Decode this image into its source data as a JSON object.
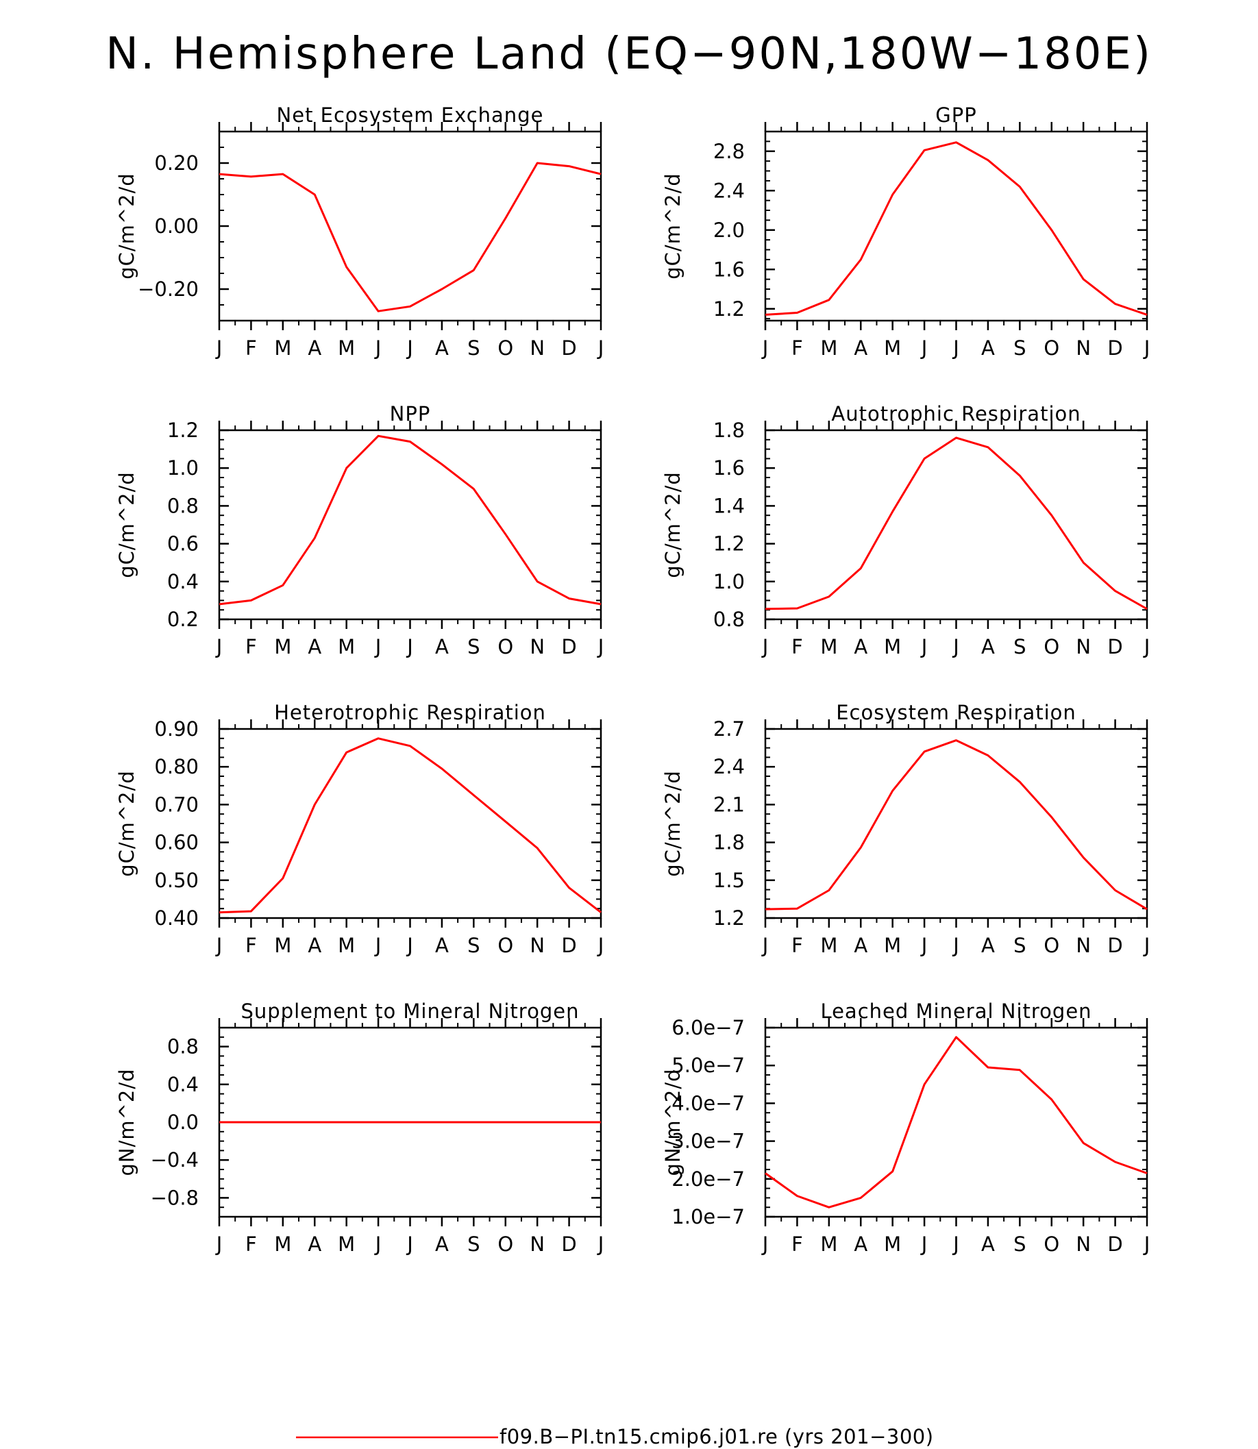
{
  "page": {
    "title": "N. Hemisphere Land (EQ-90N,180W-180E)"
  },
  "colors": {
    "series": "#ff0000",
    "axis": "#000000",
    "background": "#ffffff"
  },
  "legend": {
    "label": "f09.B-PI.tn15.cmip6.j01.re (yrs 201-300)",
    "placement": "bottom-center"
  },
  "chart_data": [
    {
      "type": "line",
      "title": "Net Ecosystem Exchange",
      "ylabel": "gC/m^2/d",
      "x": [
        "J",
        "F",
        "M",
        "A",
        "M",
        "J",
        "J",
        "A",
        "S",
        "O",
        "N",
        "D",
        "J"
      ],
      "ylim": [
        -0.3,
        0.3
      ],
      "yticks": [
        -0.2,
        0.0,
        0.2
      ],
      "ytick_labels": [
        "-0.20",
        "0.00",
        "0.20"
      ],
      "series": [
        {
          "values": [
            0.165,
            0.157,
            0.165,
            0.1,
            -0.13,
            -0.27,
            -0.255,
            -0.2,
            -0.14,
            0.025,
            0.2,
            0.19,
            0.165
          ]
        }
      ]
    },
    {
      "type": "line",
      "title": "GPP",
      "ylabel": "gC/m^2/d",
      "x": [
        "J",
        "F",
        "M",
        "A",
        "M",
        "J",
        "J",
        "A",
        "S",
        "O",
        "N",
        "D",
        "J"
      ],
      "ylim": [
        1.08,
        3.0
      ],
      "yticks": [
        1.2,
        1.6,
        2.0,
        2.4,
        2.8
      ],
      "ytick_labels": [
        "1.2",
        "1.6",
        "2.0",
        "2.4",
        "2.8"
      ],
      "series": [
        {
          "values": [
            1.14,
            1.16,
            1.29,
            1.7,
            2.36,
            2.81,
            2.89,
            2.71,
            2.44,
            2.0,
            1.5,
            1.25,
            1.14
          ]
        }
      ]
    },
    {
      "type": "line",
      "title": "NPP",
      "ylabel": "gC/m^2/d",
      "x": [
        "J",
        "F",
        "M",
        "A",
        "M",
        "J",
        "J",
        "A",
        "S",
        "O",
        "N",
        "D",
        "J"
      ],
      "ylim": [
        0.2,
        1.2
      ],
      "yticks": [
        0.2,
        0.4,
        0.6,
        0.8,
        1.0,
        1.2
      ],
      "ytick_labels": [
        "0.2",
        "0.4",
        "0.6",
        "0.8",
        "1.0",
        "1.2"
      ],
      "series": [
        {
          "values": [
            0.28,
            0.3,
            0.38,
            0.63,
            1.0,
            1.17,
            1.14,
            1.02,
            0.89,
            0.65,
            0.4,
            0.31,
            0.28
          ]
        }
      ]
    },
    {
      "type": "line",
      "title": "Autotrophic Respiration",
      "ylabel": "gC/m^2/d",
      "x": [
        "J",
        "F",
        "M",
        "A",
        "M",
        "J",
        "J",
        "A",
        "S",
        "O",
        "N",
        "D",
        "J"
      ],
      "ylim": [
        0.8,
        1.8
      ],
      "yticks": [
        0.8,
        1.0,
        1.2,
        1.4,
        1.6,
        1.8
      ],
      "ytick_labels": [
        "0.8",
        "1.0",
        "1.2",
        "1.4",
        "1.6",
        "1.8"
      ],
      "series": [
        {
          "values": [
            0.855,
            0.858,
            0.92,
            1.07,
            1.37,
            1.65,
            1.76,
            1.71,
            1.56,
            1.35,
            1.1,
            0.95,
            0.855
          ]
        }
      ]
    },
    {
      "type": "line",
      "title": "Heterotrophic Respiration",
      "ylabel": "gC/m^2/d",
      "x": [
        "J",
        "F",
        "M",
        "A",
        "M",
        "J",
        "J",
        "A",
        "S",
        "O",
        "N",
        "D",
        "J"
      ],
      "ylim": [
        0.4,
        0.9
      ],
      "yticks": [
        0.4,
        0.5,
        0.6,
        0.7,
        0.8,
        0.9
      ],
      "ytick_labels": [
        "0.40",
        "0.50",
        "0.60",
        "0.70",
        "0.80",
        "0.90"
      ],
      "series": [
        {
          "values": [
            0.415,
            0.418,
            0.505,
            0.7,
            0.838,
            0.875,
            0.855,
            0.795,
            0.725,
            0.655,
            0.585,
            0.48,
            0.415
          ]
        }
      ]
    },
    {
      "type": "line",
      "title": "Ecosystem Respiration",
      "ylabel": "gC/m^2/d",
      "x": [
        "J",
        "F",
        "M",
        "A",
        "M",
        "J",
        "J",
        "A",
        "S",
        "O",
        "N",
        "D",
        "J"
      ],
      "ylim": [
        1.2,
        2.7
      ],
      "yticks": [
        1.2,
        1.5,
        1.8,
        2.1,
        2.4,
        2.7
      ],
      "ytick_labels": [
        "1.2",
        "1.5",
        "1.8",
        "2.1",
        "2.4",
        "2.7"
      ],
      "series": [
        {
          "values": [
            1.27,
            1.275,
            1.42,
            1.76,
            2.21,
            2.52,
            2.61,
            2.49,
            2.28,
            2.0,
            1.68,
            1.42,
            1.27
          ]
        }
      ]
    },
    {
      "type": "line",
      "title": "Supplement to Mineral Nitrogen",
      "ylabel": "gN/m^2/d",
      "x": [
        "J",
        "F",
        "M",
        "A",
        "M",
        "J",
        "J",
        "A",
        "S",
        "O",
        "N",
        "D",
        "J"
      ],
      "ylim": [
        -1.0,
        1.0
      ],
      "yticks": [
        -0.8,
        -0.4,
        0.0,
        0.4,
        0.8
      ],
      "ytick_labels": [
        "-0.8",
        "-0.4",
        "0.0",
        "0.4",
        "0.8"
      ],
      "series": [
        {
          "values": [
            0,
            0,
            0,
            0,
            0,
            0,
            0,
            0,
            0,
            0,
            0,
            0,
            0
          ]
        }
      ]
    },
    {
      "type": "line",
      "title": "Leached Mineral Nitrogen",
      "ylabel": "gN/m^2/d",
      "x": [
        "J",
        "F",
        "M",
        "A",
        "M",
        "J",
        "J",
        "A",
        "S",
        "O",
        "N",
        "D",
        "J"
      ],
      "ylim": [
        1e-07,
        6e-07
      ],
      "yticks": [
        1e-07,
        2e-07,
        3e-07,
        4e-07,
        5e-07,
        6e-07
      ],
      "ytick_labels": [
        "1.0e-7",
        "2.0e-7",
        "3.0e-7",
        "4.0e-7",
        "5.0e-7",
        "6.0e-7"
      ],
      "series": [
        {
          "values": [
            2.15e-07,
            1.55e-07,
            1.25e-07,
            1.5e-07,
            2.2e-07,
            4.5e-07,
            5.75e-07,
            4.95e-07,
            4.88e-07,
            4.1e-07,
            2.95e-07,
            2.45e-07,
            2.15e-07
          ]
        }
      ]
    }
  ]
}
